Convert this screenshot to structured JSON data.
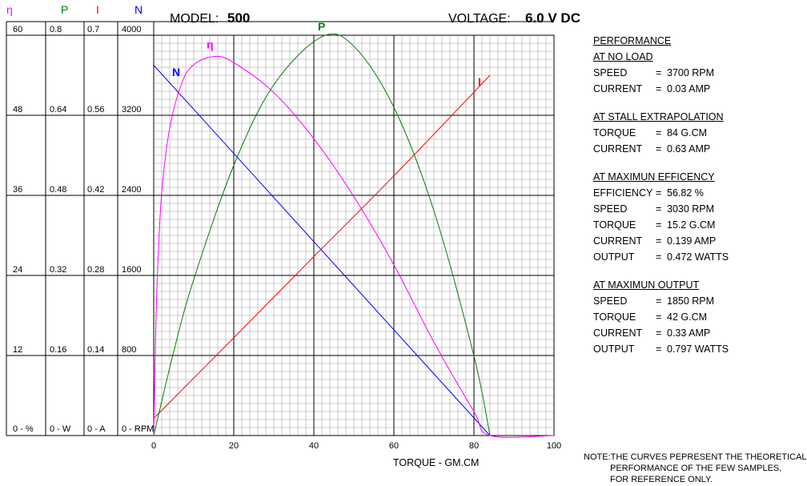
{
  "header": {
    "model_label": "MODEL:",
    "model_value": "500",
    "voltage_label": "VOLTAGE:",
    "voltage_value": "6.0 V  DC"
  },
  "left_axes": {
    "col_symbols": [
      "η",
      "P",
      "I",
      "N"
    ],
    "col_colors": [
      "#ff00ff",
      "#008000",
      "#ff0000",
      "#0000ff"
    ],
    "rows": [
      [
        "60",
        "0.8",
        "0.7",
        "4000"
      ],
      [
        "48",
        "0.64",
        "0.56",
        "3200"
      ],
      [
        "36",
        "0.48",
        "0.42",
        "2400"
      ],
      [
        "24",
        "0.32",
        "0.28",
        "1600"
      ],
      [
        "12",
        "0.16",
        "0.14",
        "800"
      ],
      [
        "0 - %",
        "0 - W",
        "0 - A",
        "0 - RPM"
      ]
    ]
  },
  "chart_data": {
    "type": "line",
    "xlabel": "TORQUE - GM.CM",
    "xlim": [
      0,
      100
    ],
    "x_ticks": [
      "0",
      "20",
      "40",
      "60",
      "80",
      "100"
    ],
    "grid": true,
    "series": [
      {
        "name": "N",
        "color": "#0000ff",
        "unit": "RPM",
        "ylim": [
          0,
          4000
        ],
        "x": [
          0,
          20,
          40,
          60,
          84
        ],
        "y": [
          3700,
          2819,
          1938,
          1057,
          0
        ]
      },
      {
        "name": "I",
        "color": "#ff0000",
        "unit": "A",
        "ylim": [
          0,
          0.7
        ],
        "x": [
          0,
          20,
          40,
          60,
          84
        ],
        "y": [
          0.03,
          0.171,
          0.313,
          0.454,
          0.63
        ]
      },
      {
        "name": "P",
        "color": "#008000",
        "unit": "W",
        "ylim": [
          0,
          0.8
        ],
        "x": [
          0,
          5,
          10,
          20,
          30,
          42,
          50,
          60,
          70,
          80,
          84
        ],
        "y": [
          0,
          0.168,
          0.312,
          0.54,
          0.701,
          0.797,
          0.778,
          0.656,
          0.449,
          0.159,
          0
        ]
      },
      {
        "name": "η",
        "color": "#ff00ff",
        "unit": "%",
        "ylim": [
          0,
          60
        ],
        "x": [
          0,
          0.5,
          1,
          2,
          4,
          7,
          10,
          15.2,
          20,
          30,
          40,
          50,
          60,
          70,
          80,
          84,
          100
        ],
        "y": [
          0,
          15.5,
          25.3,
          36.4,
          46.1,
          52.8,
          55.6,
          56.82,
          55.9,
          51.4,
          44.5,
          35.8,
          25.6,
          14.0,
          3.6,
          0,
          0
        ]
      }
    ]
  },
  "performance": {
    "title": "PERFORMANCE",
    "sections": [
      {
        "title": "AT NO LOAD",
        "rows": [
          [
            "SPEED",
            "=",
            "3700  RPM"
          ],
          [
            "CURRENT",
            "=",
            "0.03  AMP"
          ]
        ]
      },
      {
        "title": "AT STALL EXTRAPOLATION",
        "rows": [
          [
            "TORQUE",
            "=",
            "84  G.CM"
          ],
          [
            "CURRENT",
            "=",
            "0.63  AMP"
          ]
        ]
      },
      {
        "title": "AT MAXIMUN EFFICENCY",
        "rows": [
          [
            "EFFICIENCY",
            "=",
            "56.82  %"
          ],
          [
            "SPEED",
            "=",
            "3030  RPM"
          ],
          [
            "TORQUE",
            "=",
            "15.2  G.CM"
          ],
          [
            "CURRENT",
            "=",
            "0.139  AMP"
          ],
          [
            "OUTPUT",
            "=",
            "0.472  WATTS"
          ]
        ]
      },
      {
        "title": "AT MAXIMUN OUTPUT",
        "rows": [
          [
            "SPEED",
            "=",
            "1850  RPM"
          ],
          [
            "TORQUE",
            "=",
            "42  G.CM"
          ],
          [
            "CURRENT",
            "=",
            "0.33  AMP"
          ],
          [
            "OUTPUT",
            "=",
            "0.797  WATTS"
          ]
        ]
      }
    ]
  },
  "note": {
    "lines": [
      "NOTE:THE CURVES PEPRESENT THE THEORETICAL",
      "PERFORMANCE OF THE FEW SAMPLES,",
      "FOR REFERENCE ONLY."
    ]
  }
}
